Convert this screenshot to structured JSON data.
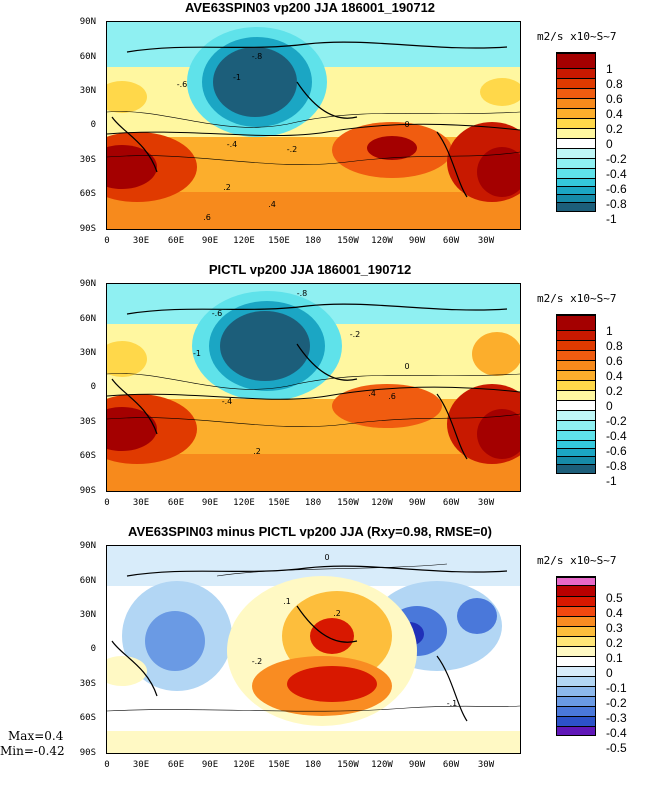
{
  "chart_data": [
    {
      "type": "heatmap",
      "title": "AVE63SPIN03 vp200 JJA 186001_190712",
      "units": "m2/s x10~S~7",
      "yticks": [
        "90N",
        "60N",
        "30N",
        "0",
        "30S",
        "60S",
        "90S"
      ],
      "xticks": [
        "0",
        "30E",
        "60E",
        "90E",
        "120E",
        "150E",
        "180",
        "150W",
        "120W",
        "90W",
        "60W",
        "30W"
      ],
      "colorbar_labels": [
        "1",
        "0.8",
        "0.6",
        "0.4",
        "0.2",
        "0",
        "-0.2",
        "-0.4",
        "-0.6",
        "-0.8",
        "-1"
      ],
      "contour_labels": [
        "-.8",
        "-1",
        "-.6",
        "-.4",
        "-.2",
        "0",
        ".2",
        ".4",
        ".6"
      ],
      "colors": [
        "#a40000",
        "#c81900",
        "#e03a00",
        "#f05c10",
        "#f78a1c",
        "#fcae2c",
        "#ffd84a",
        "#fff7a0",
        "#ffffff",
        "#bff7f7",
        "#8ff0f2",
        "#5fe2ea",
        "#34c8dc",
        "#1ba6c4",
        "#168aa8",
        "#1a7190",
        "#1c5e7a"
      ]
    },
    {
      "type": "heatmap",
      "title": "PICTL vp200 JJA 186001_190712",
      "units": "m2/s x10~S~7",
      "yticks": [
        "90N",
        "60N",
        "30N",
        "0",
        "30S",
        "60S",
        "90S"
      ],
      "xticks": [
        "0",
        "30E",
        "60E",
        "90E",
        "120E",
        "150E",
        "180",
        "150W",
        "120W",
        "90W",
        "60W",
        "30W"
      ],
      "colorbar_labels": [
        "1",
        "0.8",
        "0.6",
        "0.4",
        "0.2",
        "0",
        "-0.2",
        "-0.4",
        "-0.6",
        "-0.8",
        "-1"
      ],
      "contour_labels": [
        "-.8",
        "-1",
        "-.6",
        "-.4",
        "-.2",
        "0",
        ".2",
        ".4",
        ".6"
      ],
      "colors": [
        "#a40000",
        "#c81900",
        "#e03a00",
        "#f05c10",
        "#f78a1c",
        "#fcae2c",
        "#ffd84a",
        "#fff7a0",
        "#ffffff",
        "#bff7f7",
        "#8ff0f2",
        "#5fe2ea",
        "#34c8dc",
        "#1ba6c4",
        "#168aa8",
        "#1a7190",
        "#1c5e7a"
      ]
    },
    {
      "type": "heatmap",
      "title": "AVE63SPIN03 minus PICTL vp200 JJA (Rxy=0.98, RMSE=0)",
      "units": "m2/s x10~S~7",
      "yticks": [
        "90N",
        "60N",
        "30N",
        "0",
        "30S",
        "60S",
        "90S"
      ],
      "xticks": [
        "0",
        "30E",
        "60E",
        "90E",
        "120E",
        "150E",
        "180",
        "150W",
        "120W",
        "90W",
        "60W",
        "30W"
      ],
      "colorbar_labels": [
        "0.5",
        "0.4",
        "0.3",
        "0.2",
        "0.1",
        "0",
        "-0.1",
        "-0.2",
        "-0.3",
        "-0.4",
        "-0.5"
      ],
      "contour_labels": [
        ".2",
        ".1",
        "0",
        "-.1",
        "-.2"
      ],
      "colors": [
        "#e868c8",
        "#b80000",
        "#d81800",
        "#f24810",
        "#f98c22",
        "#fdbe3c",
        "#ffe678",
        "#fff9c4",
        "#ffffff",
        "#d8ecfa",
        "#b2d6f4",
        "#8cb8ec",
        "#6a9ae4",
        "#4a78da",
        "#2c52c8",
        "#2030b8",
        "#6018b8"
      ],
      "stats": {
        "max": "Max=0.4",
        "min": "Min=-0.42"
      }
    }
  ]
}
